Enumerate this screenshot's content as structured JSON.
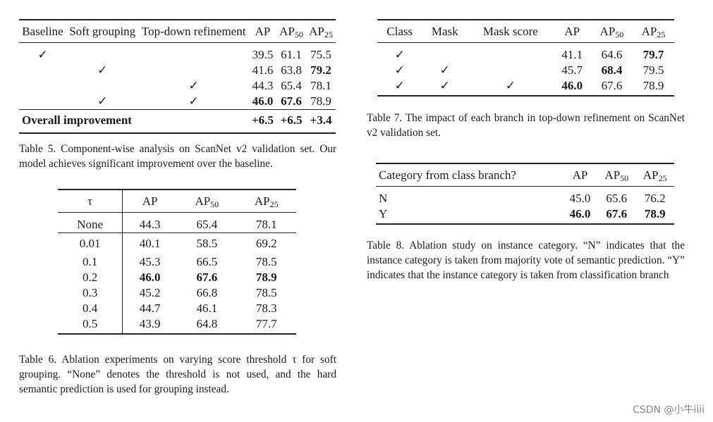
{
  "tables": {
    "t5": {
      "columns": [
        "Baseline",
        "Soft grouping",
        "Top-down refinement",
        "AP",
        "AP|50",
        "AP|25"
      ],
      "rows": [
        {
          "cells": [
            "✓",
            "",
            "",
            "39.5",
            "61.1",
            "75.5"
          ],
          "bold": []
        },
        {
          "cells": [
            "",
            "✓",
            "",
            "41.6",
            "63.8",
            "79.2"
          ],
          "bold": [
            5
          ]
        },
        {
          "cells": [
            "",
            "",
            "✓",
            "44.3",
            "65.4",
            "78.1"
          ],
          "bold": []
        },
        {
          "cells": [
            "",
            "✓",
            "✓",
            "46.0",
            "67.6",
            "78.9"
          ],
          "bold": [
            3,
            4
          ]
        }
      ],
      "footer": {
        "cells": [
          "Overall improvement",
          "+6.5",
          "+6.5",
          "+3.4"
        ],
        "bold": [
          0,
          1,
          2,
          3
        ]
      }
    },
    "t6": {
      "columns": [
        "τ",
        "AP",
        "AP|50",
        "AP|25"
      ],
      "baseline_row": {
        "cells": [
          "None",
          "44.3",
          "65.4",
          "78.1"
        ],
        "bold": []
      },
      "rows": [
        {
          "cells": [
            "0.01",
            "40.1",
            "58.5",
            "69.2"
          ],
          "bold": []
        },
        {
          "cells": [
            "0.1",
            "45.3",
            "66.5",
            "78.5"
          ],
          "bold": []
        },
        {
          "cells": [
            "0.2",
            "46.0",
            "67.6",
            "78.9"
          ],
          "bold": [
            1,
            2,
            3
          ]
        },
        {
          "cells": [
            "0.3",
            "45.2",
            "66.8",
            "78.5"
          ],
          "bold": []
        },
        {
          "cells": [
            "0.4",
            "44.7",
            "46.1",
            "78.3"
          ],
          "bold": []
        },
        {
          "cells": [
            "0.5",
            "43.9",
            "64.8",
            "77.7"
          ],
          "bold": []
        }
      ]
    },
    "t7": {
      "columns": [
        "Class",
        "Mask",
        "Mask score",
        "AP",
        "AP|50",
        "AP|25"
      ],
      "rows": [
        {
          "cells": [
            "✓",
            "",
            "",
            "41.1",
            "64.6",
            "79.7"
          ],
          "bold": [
            5
          ]
        },
        {
          "cells": [
            "✓",
            "✓",
            "",
            "45.7",
            "68.4",
            "79.5"
          ],
          "bold": [
            4
          ]
        },
        {
          "cells": [
            "✓",
            "✓",
            "✓",
            "46.0",
            "67.6",
            "78.9"
          ],
          "bold": [
            3
          ]
        }
      ]
    },
    "t8": {
      "columns": [
        "Category from class branch?",
        "AP",
        "AP|50",
        "AP|25"
      ],
      "rows": [
        {
          "cells": [
            "N",
            "45.0",
            "65.6",
            "76.2"
          ],
          "bold": []
        },
        {
          "cells": [
            "Y",
            "46.0",
            "67.6",
            "78.9"
          ],
          "bold": [
            1,
            2,
            3
          ]
        }
      ]
    }
  },
  "captions": {
    "c5": "Table 5. Component-wise analysis on ScanNet v2 validation set. Our model achieves significant improvement over the baseline.",
    "c6": "Table 6. Ablation experiments on varying score threshold τ for soft grouping. “None” denotes the threshold is not used, and the hard semantic prediction is used for grouping instead.",
    "c7": "Table 7. The impact of each branch in top-down refinement on ScanNet v2 validation set.",
    "c8": "Table 8. Ablation study on instance category. “N” indicates that the instance category is taken from majority vote of semantic prediction. “Y” indicates that the instance category is taken from classification branch"
  },
  "watermark": "CSDN @小牛iiii"
}
